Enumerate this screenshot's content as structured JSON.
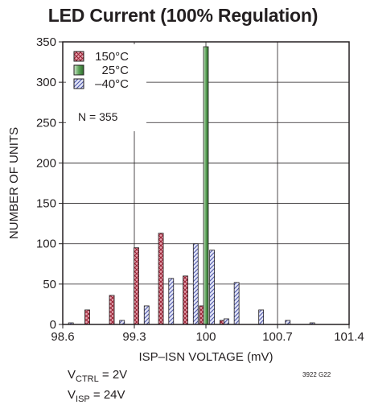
{
  "chart_data": {
    "type": "bar",
    "title": "LED Current (100% Regulation)",
    "xlabel": "ISP–ISN VOLTAGE (mV)",
    "ylabel": "NUMBER OF UNITS",
    "xlim": [
      98.6,
      101.4
    ],
    "ylim": [
      0,
      350
    ],
    "x_ticks": [
      "98.6",
      "99.3",
      "100",
      "100.7",
      "101.4"
    ],
    "y_ticks": [
      "0",
      "50",
      "100",
      "150",
      "200",
      "250",
      "300",
      "350"
    ],
    "grid": true,
    "legend_position": "top-left",
    "annotation": "N = 355",
    "series": [
      {
        "name": "150°C",
        "color": "#b8364c",
        "pattern": "crosshatch",
        "points": [
          [
            98.84,
            18
          ],
          [
            99.08,
            36
          ],
          [
            99.32,
            95
          ],
          [
            99.56,
            113
          ],
          [
            99.8,
            60
          ],
          [
            99.96,
            23
          ],
          [
            100.16,
            5
          ]
        ]
      },
      {
        "name": "25°C",
        "color": "#5da45a",
        "pattern": "vertical-gradient",
        "points": [
          [
            100.0,
            344
          ]
        ]
      },
      {
        "name": "–40°C",
        "color": "#7b82c8",
        "pattern": "diagonal-hatch",
        "points": [
          [
            98.68,
            2
          ],
          [
            99.18,
            5
          ],
          [
            99.42,
            23
          ],
          [
            99.66,
            57
          ],
          [
            99.9,
            100
          ],
          [
            100.06,
            92
          ],
          [
            100.2,
            7
          ],
          [
            100.3,
            52
          ],
          [
            100.54,
            18
          ],
          [
            100.8,
            5
          ],
          [
            101.04,
            2
          ]
        ]
      }
    ],
    "conditions": [
      {
        "name": "V",
        "sub": "CTRL",
        "value": " = 2V"
      },
      {
        "name": "V",
        "sub": "ISP",
        "value": " = 24V"
      }
    ],
    "figure_code": "3922 G22"
  }
}
